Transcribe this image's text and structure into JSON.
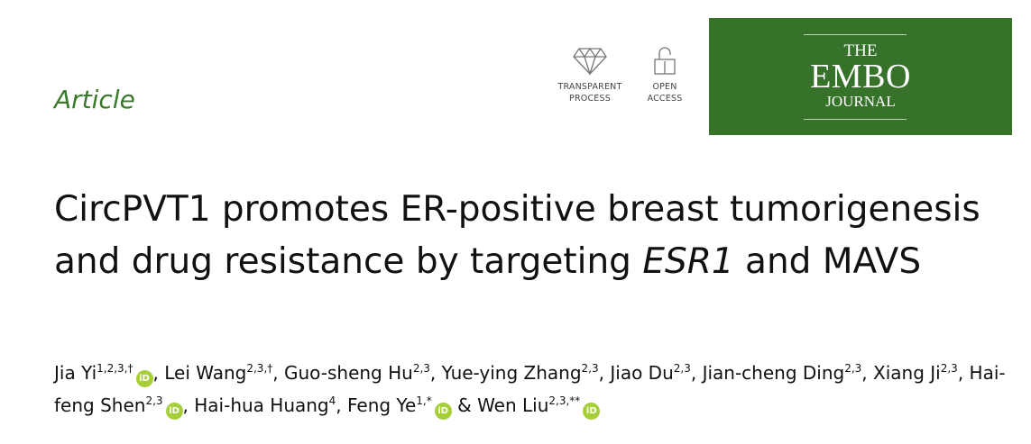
{
  "header": {
    "article_type": "Article",
    "badges": [
      {
        "icon": "diamond-icon",
        "line1": "TRANSPARENT",
        "line2": "PROCESS"
      },
      {
        "icon": "open-lock-icon",
        "line1": "OPEN",
        "line2": "ACCESS"
      }
    ],
    "journal_logo": {
      "line1": "THE",
      "line2": "EMBO",
      "line3": "JOURNAL",
      "color": "#37722b"
    }
  },
  "title": {
    "part1": "CircPVT1 promotes ER-positive breast tumorigenesis and drug resistance by targeting ",
    "italic": "ESR1",
    "part2": " and MAVS"
  },
  "authors": [
    {
      "name": "Jia Yi",
      "sup": "1,2,3,†",
      "orcid": true,
      "sep": ", "
    },
    {
      "name": "Lei Wang",
      "sup": "2,3,†",
      "orcid": false,
      "sep": ", "
    },
    {
      "name": "Guo-sheng Hu",
      "sup": "2,3",
      "orcid": false,
      "sep": ", "
    },
    {
      "name": "Yue-ying Zhang",
      "sup": "2,3",
      "orcid": false,
      "sep": ", "
    },
    {
      "name": "Jiao Du",
      "sup": "2,3",
      "orcid": false,
      "sep": ", "
    },
    {
      "name": "Jian-cheng Ding",
      "sup": "2,3",
      "orcid": false,
      "sep": ", "
    },
    {
      "name": "Xiang Ji",
      "sup": "2,3",
      "orcid": false,
      "sep": ", "
    },
    {
      "name": "Hai-feng Shen",
      "sup": "2,3",
      "orcid": true,
      "sep": ", "
    },
    {
      "name": "Hai-hua Huang",
      "sup": "4",
      "orcid": false,
      "sep": ", "
    },
    {
      "name": "Feng Ye",
      "sup": "1,*",
      "orcid": true,
      "sep": " & "
    },
    {
      "name": "Wen Liu",
      "sup": "2,3,**",
      "orcid": true,
      "sep": ""
    }
  ],
  "orcid_label": "iD"
}
